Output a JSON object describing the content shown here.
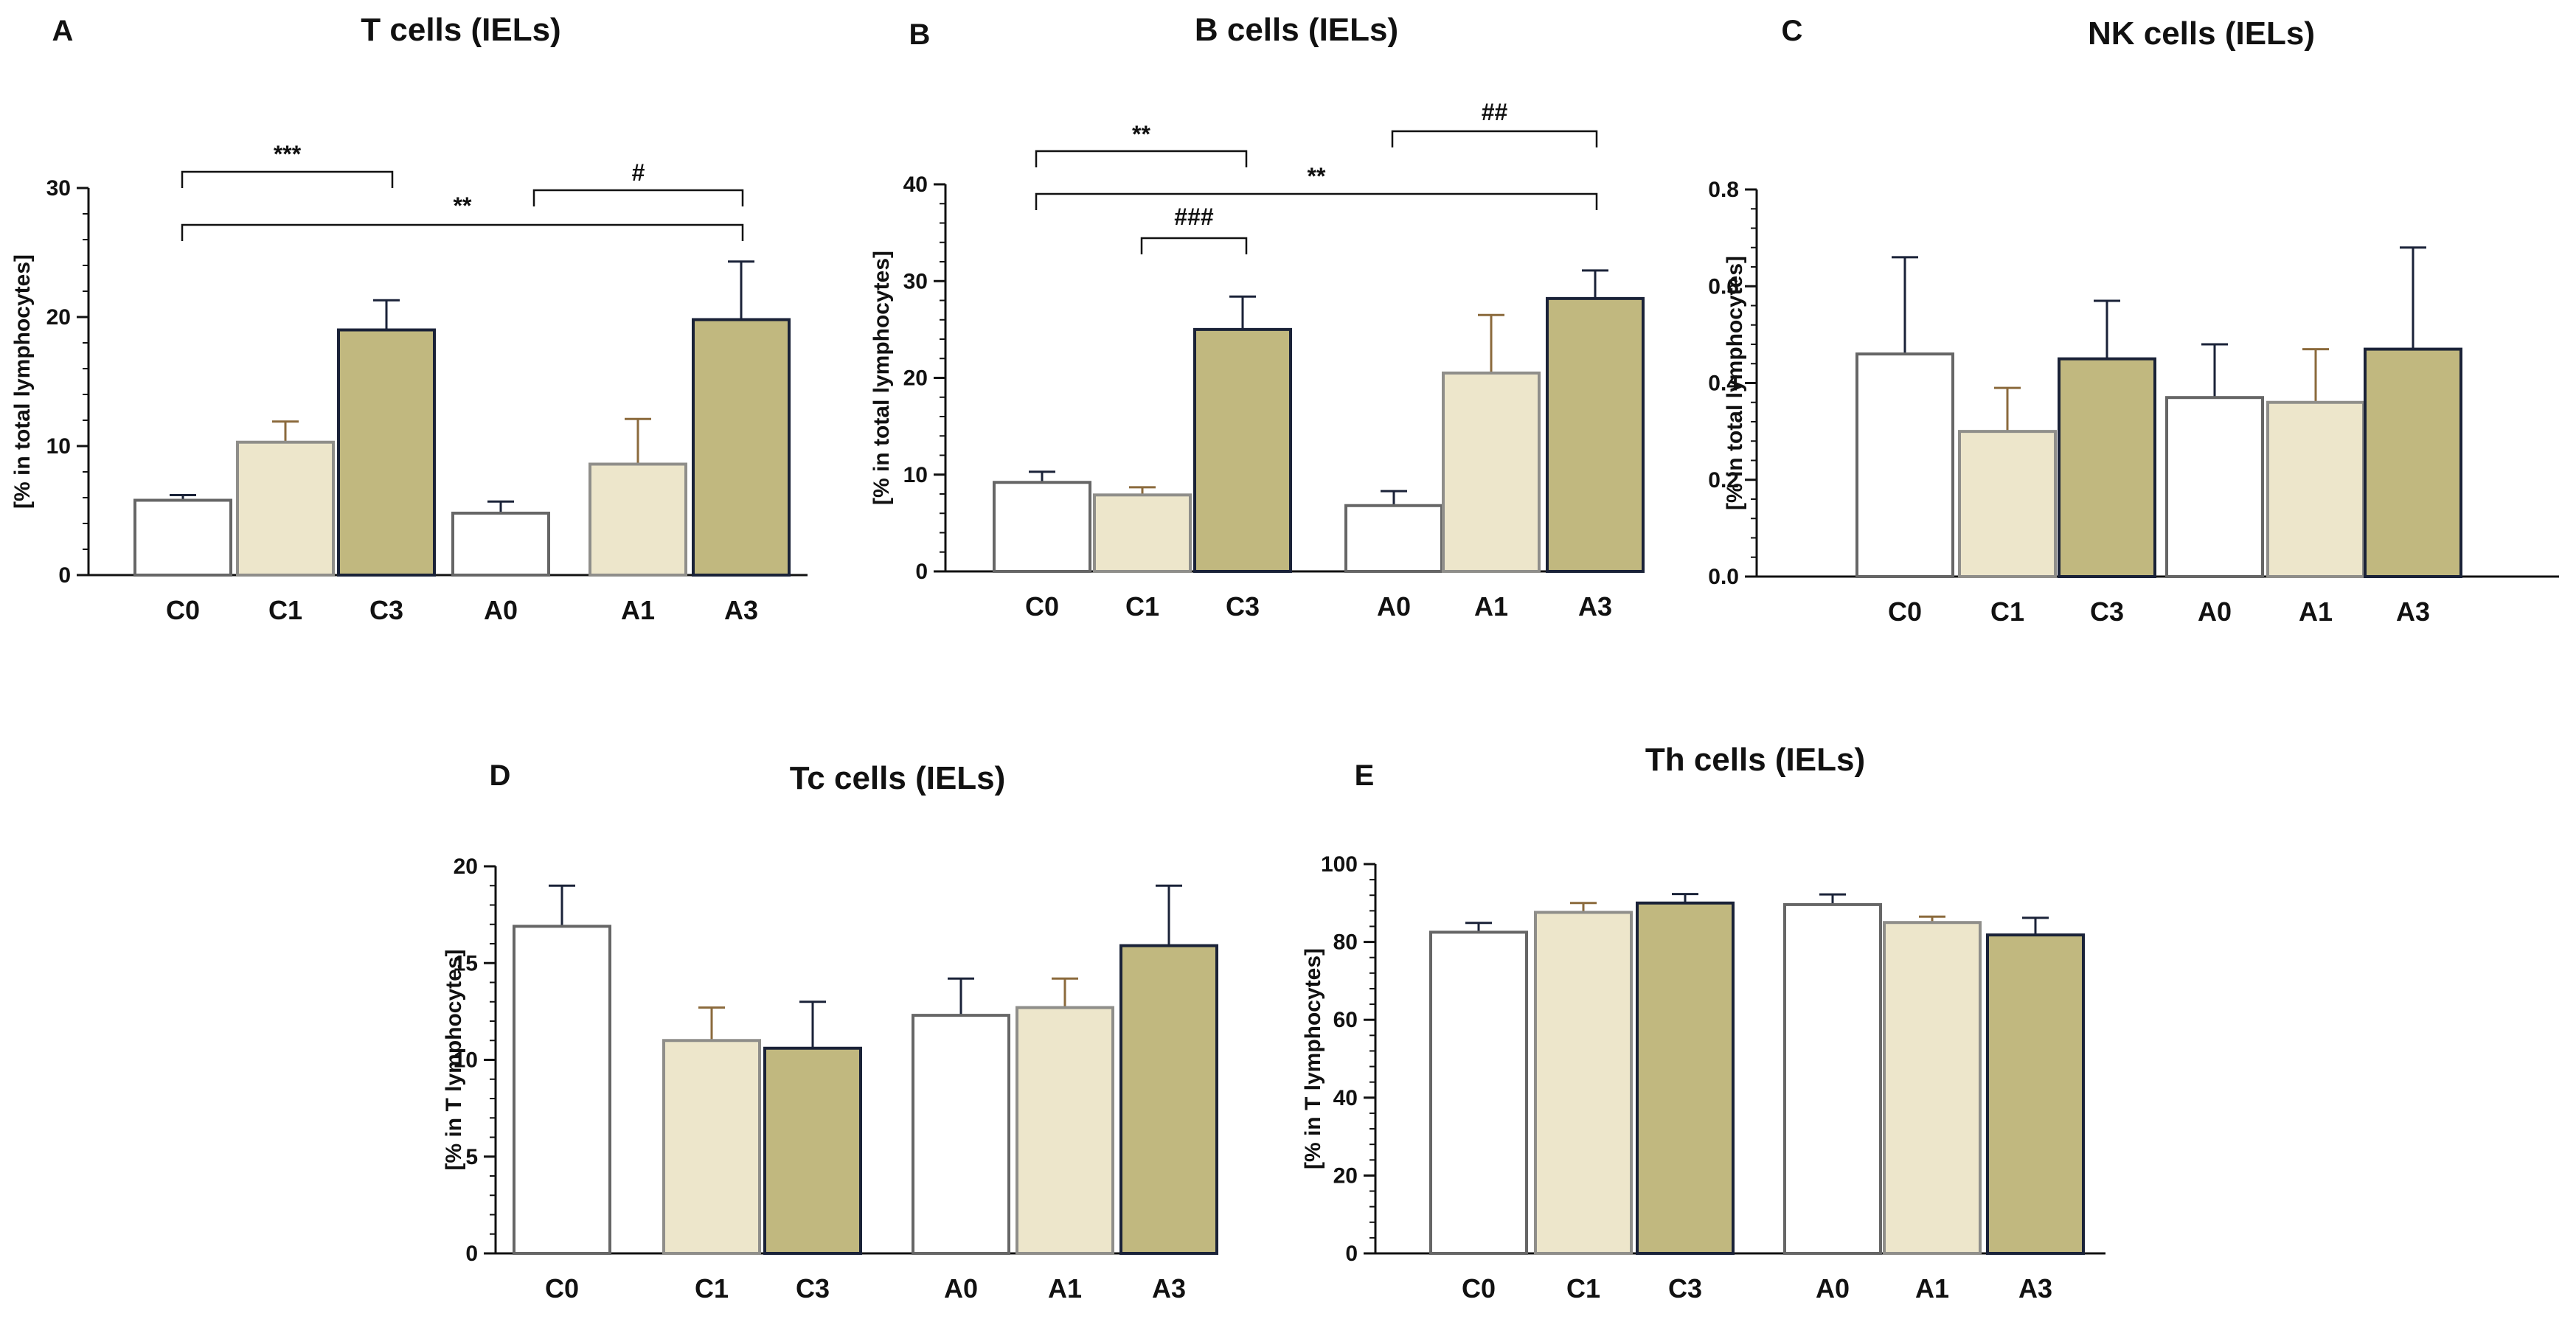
{
  "chart_data": [
    {
      "type": "bar",
      "panel": "A",
      "title": "T cells (IELs)",
      "ylabel": "[% in total lymphocytes]",
      "ylim": [
        0,
        30
      ],
      "yticks": [
        "0",
        "10",
        "20",
        "30"
      ],
      "categories": [
        "C0",
        "C1",
        "C3",
        "A0",
        "A1",
        "A3"
      ],
      "values": [
        5.8,
        10.3,
        19.0,
        4.8,
        8.6,
        19.8
      ],
      "errors": [
        0.4,
        1.6,
        2.3,
        0.9,
        3.5,
        4.5
      ],
      "significance": [
        {
          "from": "C0",
          "to": "C3",
          "label": "***"
        },
        {
          "from": "A0",
          "to": "A3",
          "label": "#"
        },
        {
          "from": "C0",
          "to": "A3",
          "label": "**"
        }
      ]
    },
    {
      "type": "bar",
      "panel": "B",
      "title": "B cells (IELs)",
      "ylabel": "[% in total lymphocytes]",
      "ylim": [
        0,
        40
      ],
      "yticks": [
        "0",
        "10",
        "20",
        "30",
        "40"
      ],
      "categories": [
        "C0",
        "C1",
        "C3",
        "A0",
        "A1",
        "A3"
      ],
      "values": [
        9.2,
        7.9,
        25.0,
        6.8,
        20.5,
        28.2
      ],
      "errors": [
        1.1,
        0.8,
        3.4,
        1.5,
        6.0,
        2.9
      ],
      "significance": [
        {
          "from": "C0",
          "to": "C3",
          "label": "**"
        },
        {
          "from": "A0",
          "to": "A3",
          "label": "##"
        },
        {
          "from": "C0",
          "to": "A3",
          "label": "**"
        },
        {
          "from": "C1",
          "to": "C3",
          "label": "###"
        }
      ]
    },
    {
      "type": "bar",
      "panel": "C",
      "title": "NK cells (IELs)",
      "ylabel": "[% in total lymphocytes]",
      "ylim": [
        0,
        0.8
      ],
      "yticks": [
        "0.0",
        "0.2",
        "0.4",
        "0.6",
        "0.8"
      ],
      "categories": [
        "C0",
        "C1",
        "C3",
        "A0",
        "A1",
        "A3"
      ],
      "values": [
        0.46,
        0.3,
        0.45,
        0.37,
        0.36,
        0.47
      ],
      "errors": [
        0.2,
        0.09,
        0.12,
        0.11,
        0.11,
        0.21
      ],
      "significance": []
    },
    {
      "type": "bar",
      "panel": "D",
      "title": "Tc cells (IELs)",
      "ylabel": "[% in T lymphocytes]",
      "ylim": [
        0,
        20
      ],
      "yticks": [
        "0",
        "5",
        "10",
        "15",
        "20"
      ],
      "categories": [
        "C0",
        "C1",
        "C3",
        "A0",
        "A1",
        "A3"
      ],
      "values": [
        16.9,
        11.0,
        10.6,
        12.3,
        12.7,
        15.9
      ],
      "errors": [
        2.1,
        1.7,
        2.4,
        1.9,
        1.5,
        3.1
      ],
      "significance": []
    },
    {
      "type": "bar",
      "panel": "E",
      "title": "Th cells (IELs)",
      "ylabel": "[% in T lymphocytes]",
      "ylim": [
        0,
        100
      ],
      "yticks": [
        "0",
        "20",
        "40",
        "60",
        "80",
        "100"
      ],
      "categories": [
        "C0",
        "C1",
        "C3",
        "A0",
        "A1",
        "A3"
      ],
      "values": [
        82.5,
        87.6,
        90.0,
        89.6,
        85.0,
        81.8
      ],
      "errors": [
        2.4,
        2.4,
        2.3,
        2.6,
        1.5,
        4.4
      ],
      "significance": []
    }
  ],
  "colors": {
    "bar_fills": [
      "#ffffff",
      "#ede6cb",
      "#c1b87f",
      "#ffffff",
      "#ede6cb",
      "#c1b87f"
    ],
    "bar_strokes": [
      "#666666",
      "#8f8e8a",
      "#1a2238",
      "#666666",
      "#8f8e8a",
      "#1a2238"
    ],
    "error_colors": [
      "#1a2238",
      "#8b6a3c",
      "#1a2238",
      "#1a2238",
      "#8b6a3c",
      "#1a2238"
    ],
    "axis": "#111111"
  }
}
